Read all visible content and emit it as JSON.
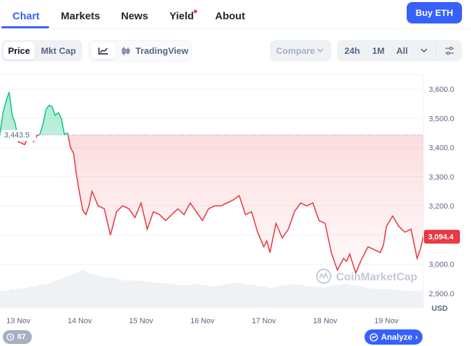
{
  "nav": {
    "tabs": [
      {
        "label": "Chart",
        "active": true
      },
      {
        "label": "Markets"
      },
      {
        "label": "News"
      },
      {
        "label": "Yield"
      },
      {
        "label": "About"
      }
    ],
    "buy_label": "Buy ETH"
  },
  "toolbar": {
    "price_label": "Price",
    "mktcap_label": "Mkt Cap",
    "tradingview_label": "TradingView",
    "compare_label": "Compare",
    "range": [
      "24h",
      "1M",
      "All"
    ]
  },
  "colors": {
    "accent": "#3861fb",
    "up": "#16c784",
    "down": "#ea3943",
    "volume": "#eff2f5"
  },
  "chart_data": {
    "type": "line",
    "unit": "USD",
    "open_price": 3443.5,
    "open_price_label": "3,443.5",
    "current_price": 3094.4,
    "current_price_label": "3,094.4",
    "ylim": [
      2850,
      3650
    ],
    "yticks": [
      "3,600.0",
      "3,500.0",
      "3,400.0",
      "3,300.0",
      "3,200.0",
      "3,100.0",
      "3,000.0",
      "2,900.0"
    ],
    "ytick_values": [
      3600,
      3500,
      3400,
      3300,
      3200,
      3100,
      3000,
      2900
    ],
    "xticks": [
      "13 Nov",
      "14 Nov",
      "15 Nov",
      "16 Nov",
      "17 Nov",
      "18 Nov",
      "19 Nov"
    ],
    "xtick_days": [
      13,
      14,
      15,
      16,
      17,
      18,
      19
    ],
    "watermark": "CoinMarketCap",
    "x": [
      12.7,
      12.75,
      12.8,
      12.85,
      12.9,
      12.95,
      13.0,
      13.05,
      13.1,
      13.15,
      13.2,
      13.25,
      13.3,
      13.35,
      13.4,
      13.45,
      13.5,
      13.55,
      13.6,
      13.65,
      13.7,
      13.75,
      13.8,
      13.85,
      13.9,
      13.95,
      14.0,
      14.05,
      14.1,
      14.15,
      14.2,
      14.3,
      14.4,
      14.5,
      14.6,
      14.7,
      14.8,
      14.9,
      15.0,
      15.1,
      15.2,
      15.3,
      15.4,
      15.5,
      15.6,
      15.7,
      15.8,
      15.9,
      16.0,
      16.1,
      16.2,
      16.3,
      16.4,
      16.5,
      16.6,
      16.7,
      16.8,
      16.9,
      17.0,
      17.05,
      17.1,
      17.2,
      17.3,
      17.4,
      17.5,
      17.6,
      17.7,
      17.8,
      17.9,
      18.0,
      18.05,
      18.1,
      18.2,
      18.3,
      18.35,
      18.4,
      18.5,
      18.6,
      18.7,
      18.8,
      18.9,
      18.95,
      19.0,
      19.1,
      19.2,
      19.3,
      19.4,
      19.5,
      19.55,
      19.6
    ],
    "values": [
      3450,
      3520,
      3560,
      3590,
      3510,
      3480,
      3420,
      3415,
      3410,
      3430,
      3432,
      3420,
      3440,
      3445,
      3480,
      3530,
      3545,
      3540,
      3510,
      3520,
      3500,
      3445,
      3450,
      3400,
      3380,
      3300,
      3240,
      3185,
      3170,
      3200,
      3250,
      3200,
      3190,
      3100,
      3180,
      3200,
      3190,
      3160,
      3210,
      3120,
      3180,
      3170,
      3150,
      3170,
      3190,
      3170,
      3210,
      3180,
      3150,
      3190,
      3200,
      3200,
      3210,
      3220,
      3235,
      3170,
      3180,
      3110,
      3060,
      3080,
      3040,
      3140,
      3090,
      3120,
      3180,
      3210,
      3200,
      3210,
      3150,
      3140,
      3090,
      3040,
      2980,
      3020,
      3010,
      3035,
      2970,
      3020,
      3060,
      3050,
      3040,
      3065,
      3130,
      3165,
      3130,
      3110,
      3120,
      3020,
      3050,
      3094.4
    ],
    "volume": [
      0.42,
      0.45,
      0.44,
      0.47,
      0.5,
      0.48,
      0.5,
      0.52,
      0.5,
      0.54,
      0.56,
      0.55,
      0.58,
      0.6,
      0.62,
      0.6,
      0.64,
      0.66,
      0.7,
      0.72,
      0.75,
      0.78,
      0.82,
      0.85,
      0.88,
      0.9,
      0.95,
      1.0,
      0.95,
      0.9,
      0.88,
      0.85,
      0.8,
      0.78,
      0.76,
      0.72,
      0.7,
      0.72,
      0.7,
      0.68,
      0.66,
      0.65,
      0.64,
      0.62,
      0.6,
      0.58,
      0.6,
      0.62,
      0.6,
      0.58,
      0.56,
      0.58,
      0.62,
      0.64,
      0.66,
      0.62,
      0.6,
      0.58,
      0.56,
      0.55,
      0.52,
      0.55,
      0.58,
      0.6,
      0.62,
      0.6,
      0.58,
      0.56,
      0.55,
      0.54,
      0.55,
      0.58,
      0.6,
      0.62,
      0.64,
      0.6,
      0.58,
      0.55,
      0.52,
      0.5,
      0.48,
      0.5,
      0.5,
      0.48,
      0.46,
      0.45,
      0.44,
      0.46,
      0.45,
      0.44
    ]
  },
  "footer": {
    "count_badge": "87",
    "analyze_label": "Analyze"
  }
}
